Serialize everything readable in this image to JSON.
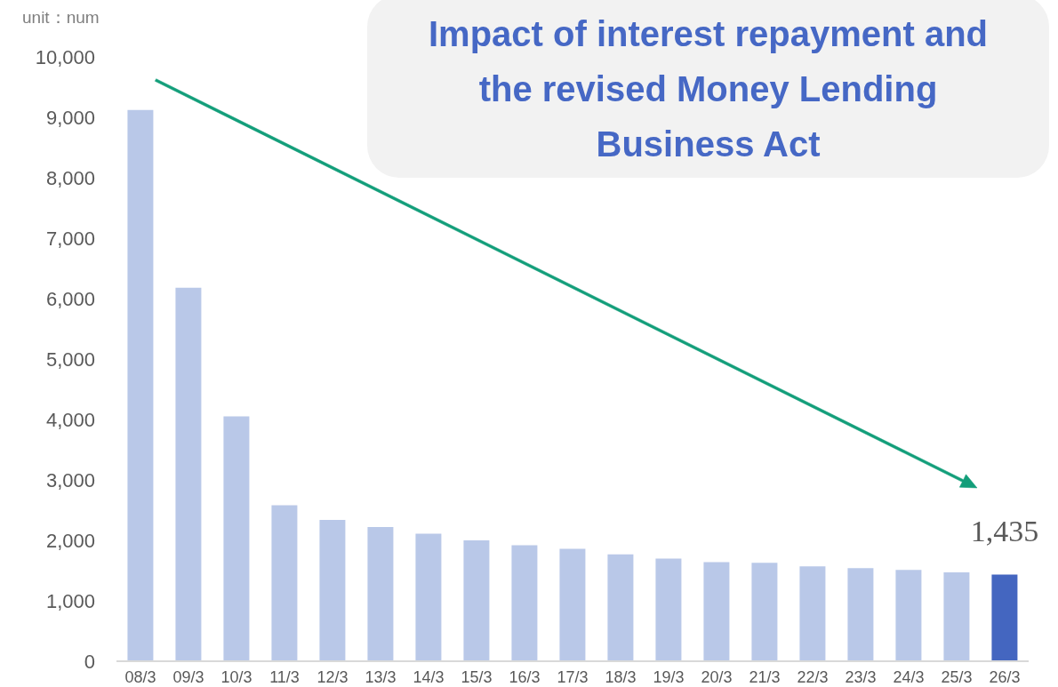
{
  "chart_data": {
    "type": "bar",
    "title": "Impact of interest repayment and the revised Money Lending Business Act",
    "ylabel": "unit：num",
    "categories": [
      "08/3",
      "09/3",
      "10/3",
      "11/3",
      "12/3",
      "13/3",
      "14/3",
      "15/3",
      "16/3",
      "17/3",
      "18/3",
      "19/3",
      "20/3",
      "21/3",
      "22/3",
      "23/3",
      "24/3",
      "25/3",
      "26/3"
    ],
    "values": [
      9120,
      6180,
      4050,
      2580,
      2340,
      2220,
      2110,
      2000,
      1920,
      1860,
      1770,
      1700,
      1640,
      1630,
      1570,
      1540,
      1510,
      1470,
      1435
    ],
    "colors": [
      "#b9c8e8",
      "#b9c8e8",
      "#b9c8e8",
      "#b9c8e8",
      "#b9c8e8",
      "#b9c8e8",
      "#b9c8e8",
      "#b9c8e8",
      "#b9c8e8",
      "#b9c8e8",
      "#b9c8e8",
      "#b9c8e8",
      "#b9c8e8",
      "#b9c8e8",
      "#b9c8e8",
      "#b9c8e8",
      "#b9c8e8",
      "#b9c8e8",
      "#4466c0"
    ],
    "value_labels": [
      null,
      null,
      null,
      null,
      null,
      null,
      null,
      null,
      null,
      null,
      null,
      null,
      null,
      null,
      null,
      null,
      null,
      null,
      "1,435"
    ],
    "ylim": [
      0,
      10000
    ],
    "yticks": [
      0,
      {
        "value": 1000,
        "label": "1,000"
      },
      {
        "value": 2000,
        "label": "2,000"
      },
      {
        "value": 3000,
        "label": "3,000"
      },
      {
        "value": 4000,
        "label": "4,000"
      },
      {
        "value": 5000,
        "label": "5,000"
      },
      {
        "value": 6000,
        "label": "6,000"
      },
      {
        "value": 7000,
        "label": "7,000"
      },
      {
        "value": 8000,
        "label": "8,000"
      },
      {
        "value": 9000,
        "label": "9,000"
      },
      {
        "value": 10000,
        "label": "10,000"
      }
    ]
  }
}
